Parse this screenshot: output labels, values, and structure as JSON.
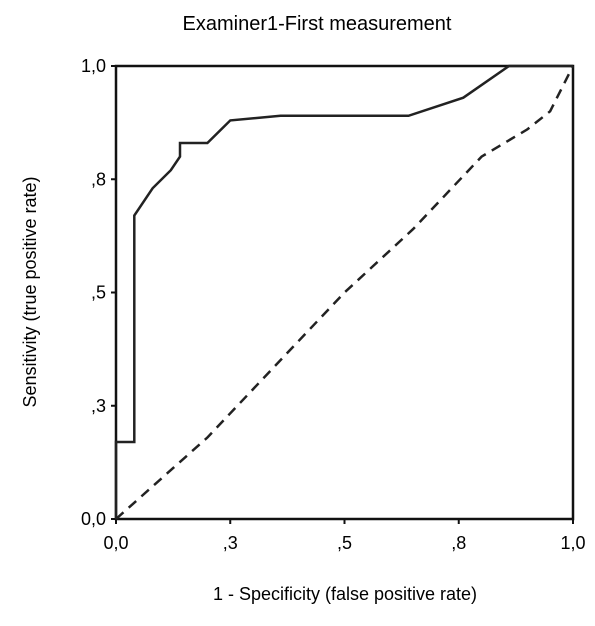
{
  "chart_data": {
    "type": "line",
    "title": "Examiner1-First measurement",
    "xlabel": "1 - Specificity (false positive rate)",
    "ylabel": "Sensitivity (true positive rate)",
    "xlim": [
      0,
      1
    ],
    "ylim": [
      0,
      1
    ],
    "x_ticks": [
      {
        "value": 0.0,
        "label": "0,0"
      },
      {
        "value": 0.25,
        "label": ",3"
      },
      {
        "value": 0.5,
        "label": ",5"
      },
      {
        "value": 0.75,
        "label": ",8"
      },
      {
        "value": 1.0,
        "label": "1,0"
      }
    ],
    "y_ticks": [
      {
        "value": 0.0,
        "label": "0,0"
      },
      {
        "value": 0.25,
        "label": ",3"
      },
      {
        "value": 0.5,
        "label": ",5"
      },
      {
        "value": 0.75,
        "label": ",8"
      },
      {
        "value": 1.0,
        "label": "1,0"
      }
    ],
    "grid": false,
    "series": [
      {
        "style": "solid",
        "color": "#222222",
        "points": [
          [
            0.0,
            0.0
          ],
          [
            0.0,
            0.17
          ],
          [
            0.04,
            0.17
          ],
          [
            0.04,
            0.67
          ],
          [
            0.08,
            0.73
          ],
          [
            0.12,
            0.77
          ],
          [
            0.14,
            0.8
          ],
          [
            0.14,
            0.83
          ],
          [
            0.18,
            0.83
          ],
          [
            0.2,
            0.83
          ],
          [
            0.25,
            0.88
          ],
          [
            0.36,
            0.89
          ],
          [
            0.64,
            0.89
          ],
          [
            0.76,
            0.93
          ],
          [
            0.86,
            1.0
          ],
          [
            1.0,
            1.0
          ]
        ]
      },
      {
        "style": "dashed",
        "color": "#222222",
        "points": [
          [
            0.0,
            0.0
          ],
          [
            0.2,
            0.18
          ],
          [
            0.35,
            0.34
          ],
          [
            0.5,
            0.5
          ],
          [
            0.65,
            0.64
          ],
          [
            0.8,
            0.8
          ],
          [
            0.9,
            0.86
          ],
          [
            0.95,
            0.9
          ],
          [
            1.0,
            1.0
          ]
        ]
      }
    ]
  }
}
